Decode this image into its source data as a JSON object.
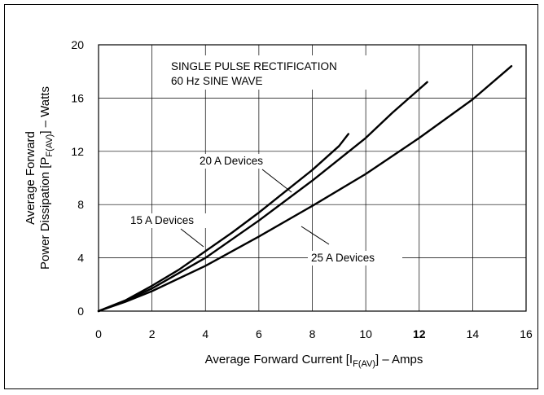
{
  "chart_data": {
    "type": "line",
    "xlabel_pre": "Average Forward Current [I",
    "xlabel_sub": "F(AV)",
    "xlabel_post": "] – Amps",
    "ylabel_line1": "Average Forward",
    "ylabel_pre": "Power Dissipation [P",
    "ylabel_sub": "F(AV)",
    "ylabel_post": "] – Watts",
    "xlim": [
      0,
      16
    ],
    "ylim": [
      0,
      20
    ],
    "x_ticks": [
      0,
      2,
      4,
      6,
      8,
      10,
      12,
      14,
      16
    ],
    "x_tick_labels": [
      "0",
      "2",
      "4",
      "6",
      "8",
      "10",
      "12",
      "14",
      "16"
    ],
    "y_ticks": [
      0,
      4,
      8,
      12,
      16,
      20
    ],
    "y_tick_labels": [
      "0",
      "4",
      "8",
      "12",
      "16",
      "20"
    ],
    "grid": true,
    "annotation_box": [
      "SINGLE PULSE RECTIFICATION",
      "60 Hz SINE WAVE"
    ],
    "series": [
      {
        "name": "15 A Devices",
        "points": [
          [
            0,
            0
          ],
          [
            1,
            0.8
          ],
          [
            2,
            1.9
          ],
          [
            3,
            3.1
          ],
          [
            4,
            4.5
          ],
          [
            5,
            5.9
          ],
          [
            6,
            7.4
          ],
          [
            7,
            9.0
          ],
          [
            8,
            10.6
          ],
          [
            9,
            12.4
          ],
          [
            9.35,
            13.3
          ]
        ]
      },
      {
        "name": "20 A Devices",
        "points": [
          [
            0,
            0
          ],
          [
            1,
            0.75
          ],
          [
            2,
            1.7
          ],
          [
            4,
            4.0
          ],
          [
            6,
            6.8
          ],
          [
            8,
            9.8
          ],
          [
            10,
            13.0
          ],
          [
            11,
            14.9
          ],
          [
            12.3,
            17.2
          ]
        ]
      },
      {
        "name": "25 A Devices",
        "points": [
          [
            0,
            0
          ],
          [
            1,
            0.7
          ],
          [
            2,
            1.5
          ],
          [
            4,
            3.4
          ],
          [
            6,
            5.6
          ],
          [
            8,
            7.9
          ],
          [
            10,
            10.3
          ],
          [
            12,
            13.0
          ],
          [
            14,
            15.9
          ],
          [
            15.45,
            18.4
          ]
        ]
      }
    ],
    "labels": [
      "20 A Devices",
      "15 A Devices",
      "25 A Devices"
    ]
  }
}
